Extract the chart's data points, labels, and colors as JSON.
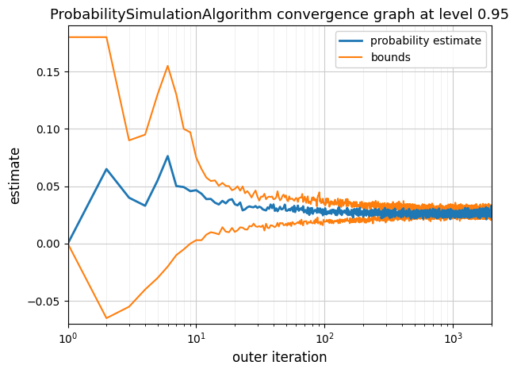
{
  "title": "ProbabilitySimulationAlgorithm convergence graph at level 0.95",
  "xlabel": "outer iteration",
  "ylabel": "estimate",
  "xlim": [
    1,
    2000
  ],
  "ylim": [
    -0.07,
    0.19
  ],
  "true_value": 0.027,
  "line_colors": {
    "estimate": "#1f77b4",
    "bounds": "#ff7f0e"
  },
  "legend_labels": [
    "probability estimate",
    "bounds"
  ],
  "line_widths": {
    "estimate": 2.0,
    "bounds": 1.5
  },
  "title_fontsize": 13,
  "axis_fontsize": 12,
  "legend_fontsize": 10,
  "background_color": "#ffffff",
  "grid_color": "#cccccc"
}
